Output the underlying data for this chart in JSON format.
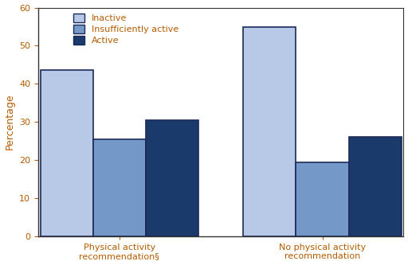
{
  "groups": [
    "Physical activity\nrecommendation§",
    "No physical activity\nrecommendation"
  ],
  "categories": [
    "Inactive",
    "Insufficiently active",
    "Active"
  ],
  "values": [
    [
      43.6,
      25.5,
      30.5
    ],
    [
      54.8,
      19.3,
      26.0
    ]
  ],
  "colors": [
    "#b8c9e8",
    "#7499c8",
    "#1a3a6b"
  ],
  "ylabel": "Percentage",
  "ylim": [
    0,
    60
  ],
  "yticks": [
    0,
    10,
    20,
    30,
    40,
    50,
    60
  ],
  "legend_labels": [
    "Inactive",
    "Insufficiently active",
    "Active"
  ],
  "bar_width": 0.13,
  "edge_color": "#1a2a5a",
  "text_color": "#b35c00",
  "bg_color": "#ffffff",
  "group_centers": [
    0.25,
    0.75
  ]
}
